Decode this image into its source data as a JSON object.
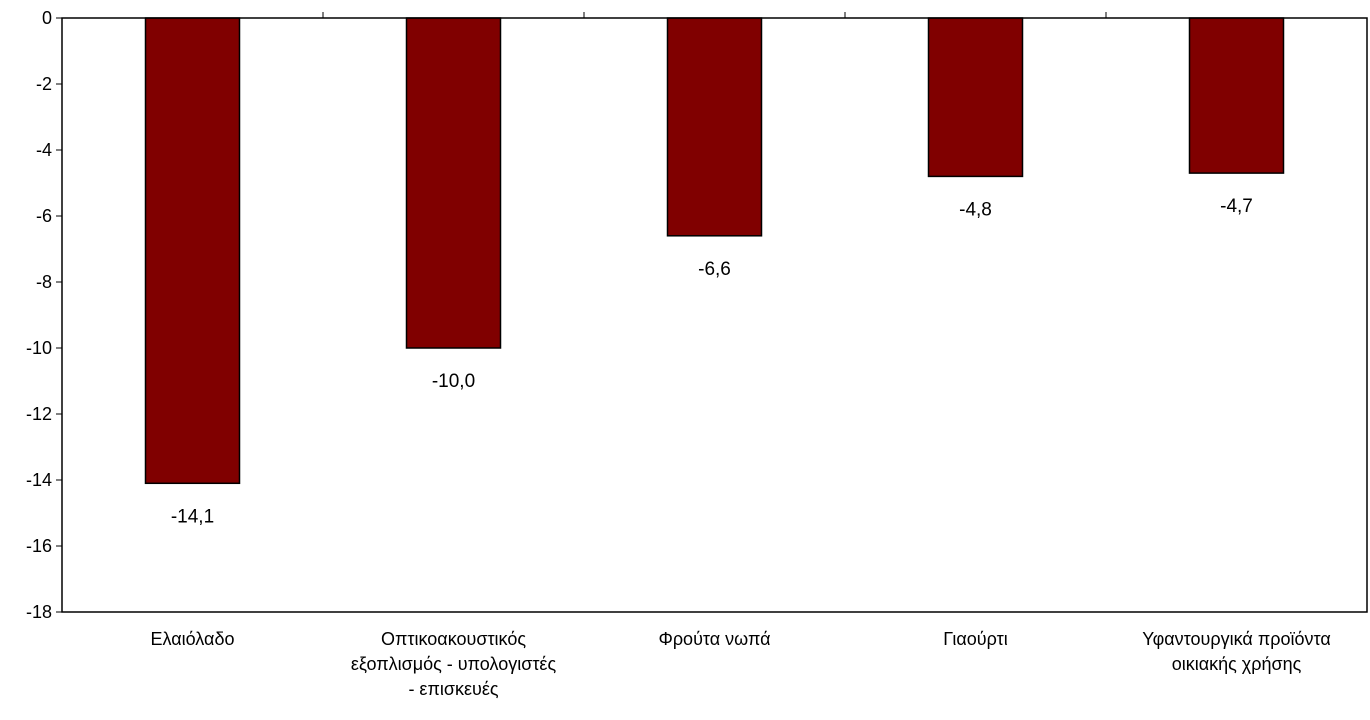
{
  "chart_data": {
    "type": "bar",
    "categories": [
      [
        "Ελαιόλαδο"
      ],
      [
        "Οπτικοακουστικός",
        "εξοπλισμός - υπολογιστές",
        "- επισκευές"
      ],
      [
        "Φρούτα νωπά"
      ],
      [
        "Γιαούρτι"
      ],
      [
        "Υφαντουργικά προϊόντα",
        "οικιακής χρήσης"
      ]
    ],
    "values": [
      -14.1,
      -10.0,
      -6.6,
      -4.8,
      -4.7
    ],
    "data_labels": [
      "-14,1",
      "-10,0",
      "-6,6",
      "-4,8",
      "-4,7"
    ],
    "y_ticks": [
      0,
      -2,
      -4,
      -6,
      -8,
      -10,
      -12,
      -14,
      -16,
      -18
    ],
    "ylim": [
      -18,
      0
    ],
    "title": "",
    "xlabel": "",
    "ylabel": "",
    "grid": false,
    "legend": "none",
    "colors": {
      "bar_fill": "#800000",
      "bar_stroke": "#000000",
      "axis": "#000000",
      "text": "#000000"
    }
  }
}
